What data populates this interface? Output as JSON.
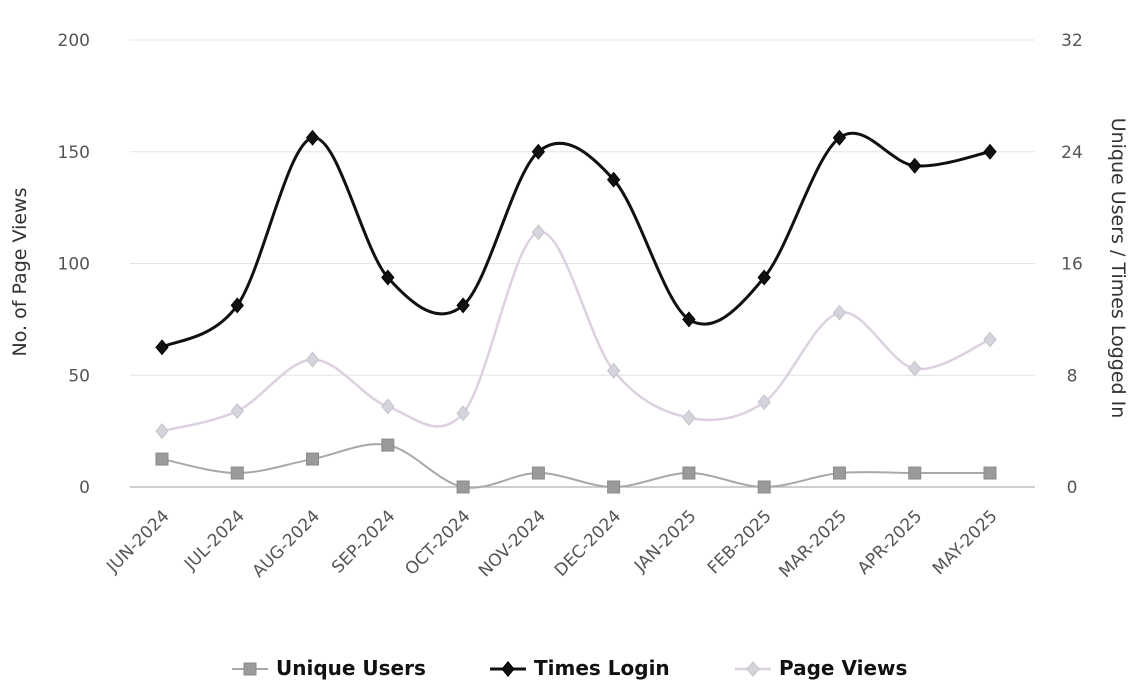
{
  "chart_data": {
    "type": "line",
    "categories": [
      "JUN-2024",
      "JUL-2024",
      "AUG-2024",
      "SEP-2024",
      "OCT-2024",
      "NOV-2024",
      "DEC-2024",
      "JAN-2025",
      "FEB-2025",
      "MAR-2025",
      "APR-2025",
      "MAY-2025"
    ],
    "ylabel": "No. of Page Views",
    "y2label": "Unique Users / Times Logged In",
    "ylim": [
      0,
      200
    ],
    "y2lim": [
      0,
      32
    ],
    "yticks": [
      "0",
      "50",
      "100",
      "150",
      "200"
    ],
    "y2ticks": [
      "0",
      "8",
      "16",
      "24",
      "32"
    ],
    "grid": true,
    "legend_position": "bottom",
    "series": [
      {
        "name": "Unique Users",
        "axis": "right",
        "marker": "square",
        "color": "#9a9a9a",
        "values": [
          2,
          1,
          2,
          3,
          0,
          1,
          0,
          1,
          0,
          1,
          1,
          1
        ]
      },
      {
        "name": "Times Login",
        "axis": "right",
        "marker": "diamond",
        "color": "#111111",
        "values": [
          10,
          13,
          25,
          15,
          13,
          24,
          22,
          12,
          15,
          25,
          23,
          24
        ]
      },
      {
        "name": "Page Views",
        "axis": "left",
        "marker": "diamond",
        "color": "#d8c8dc",
        "values": [
          25,
          34,
          57,
          36,
          33,
          114,
          52,
          31,
          38,
          78,
          53,
          66
        ]
      }
    ]
  }
}
